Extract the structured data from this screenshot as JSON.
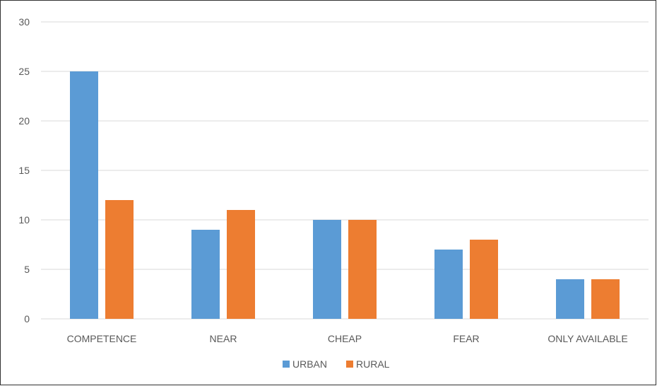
{
  "chart_data": {
    "type": "bar",
    "categories": [
      "COMPETENCE",
      "NEAR",
      "CHEAP",
      "FEAR",
      "ONLY AVAILABLE"
    ],
    "series": [
      {
        "name": "URBAN",
        "values": [
          25,
          9,
          10,
          7,
          4
        ],
        "color": "#5B9BD5"
      },
      {
        "name": "RURAL",
        "values": [
          12,
          11,
          10,
          8,
          4
        ],
        "color": "#ED7D31"
      }
    ],
    "ylim": [
      0,
      30
    ],
    "yticks": [
      0,
      5,
      10,
      15,
      20,
      25,
      30
    ],
    "grid": true,
    "legend_position": "bottom",
    "title": "",
    "xlabel": "",
    "ylabel": ""
  }
}
